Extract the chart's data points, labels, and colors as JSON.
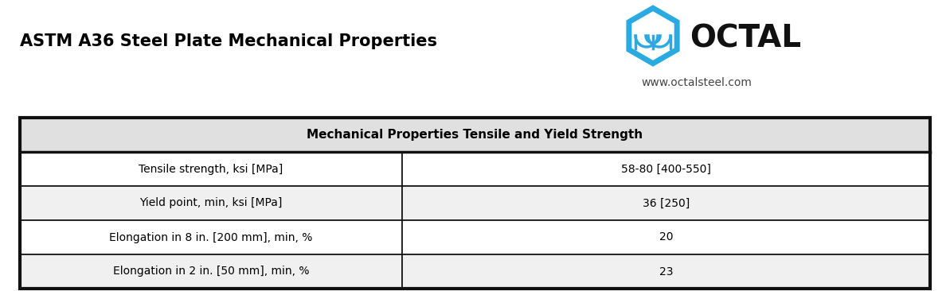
{
  "title": "ASTM A36 Steel Plate Mechanical Properties",
  "website": "www.octalsteel.com",
  "table_header": "Mechanical Properties Tensile and Yield Strength",
  "rows": [
    [
      "Tensile strength, ksi [MPa]",
      "58-80 [400-550]"
    ],
    [
      "Yield point, min, ksi [MPa]",
      "36 [250]"
    ],
    [
      "Elongation in 8 in. [200 mm], min, %",
      "20"
    ],
    [
      "Elongation in 2 in. [50 mm], min, %",
      "23"
    ]
  ],
  "background_color": "#ffffff",
  "table_border_color": "#111111",
  "header_bg": "#e0e0e0",
  "row_bg_light": "#f0f0f0",
  "row_bg_white": "#ffffff",
  "title_fontsize": 15,
  "header_fontsize": 11,
  "cell_fontsize": 10,
  "website_fontsize": 10,
  "logo_text": "OCTAL",
  "logo_color": "#111111",
  "logo_icon_blue": "#29abe2",
  "logo_icon_dark": "#1a6080"
}
